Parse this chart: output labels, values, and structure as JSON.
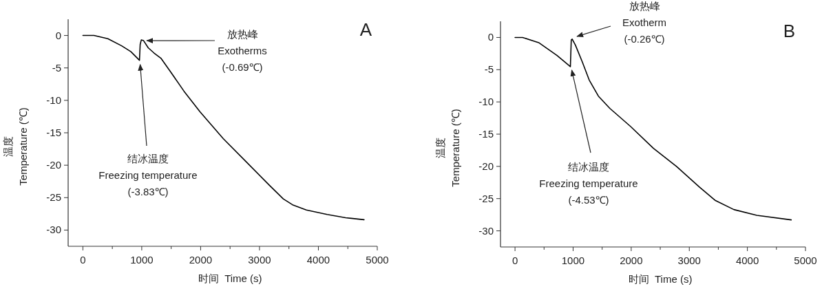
{
  "chart_data": [
    {
      "type": "line",
      "title": "A",
      "xlabel": "时间  Time (s)",
      "ylabel": "温度\nTemperature (℃)",
      "x": [
        0,
        188,
        424,
        659,
        816,
        961,
        973,
        992,
        1031,
        1110,
        1208,
        1325,
        1482,
        1718,
        1992,
        2384,
        2776,
        3169,
        3404,
        3561,
        3796,
        4149,
        4463,
        4776
      ],
      "series": [
        {
          "color": "#000000",
          "values": [
            0,
            0,
            -0.5,
            -1.6,
            -2.5,
            -3.83,
            -1.4,
            -0.69,
            -0.8,
            -1.9,
            -2.7,
            -3.5,
            -5.5,
            -8.6,
            -11.8,
            -15.9,
            -19.5,
            -23.1,
            -25.2,
            -26.1,
            -26.9,
            -27.6,
            -28.1,
            -28.4
          ]
        }
      ],
      "xlim": [
        -250,
        5000
      ],
      "ylim": [
        -32.5,
        2.5
      ],
      "xticks": [
        0,
        {
          "value": 500,
          "label": null
        },
        1000,
        {
          "value": 1500,
          "label": null
        },
        2000,
        {
          "value": 2500,
          "label": null
        },
        3000,
        {
          "value": 3500,
          "label": null
        },
        4000,
        {
          "value": 4500,
          "label": null
        },
        5000
      ],
      "yticks": [
        0,
        -5,
        -10,
        -15,
        -20,
        -25,
        -30
      ],
      "annotations": [
        {
          "text": "放热峰\nExotherms\n(-0.69℃)",
          "x": 992,
          "y": -0.69
        },
        {
          "text": "结冰温度\nFreezing temperature\n(-3.83℃)",
          "x": 961,
          "y": -3.83
        }
      ],
      "grid": false,
      "marker": "none",
      "line_style": "solid"
    },
    {
      "type": "line",
      "title": "B",
      "xlabel": "时间  Time (s)",
      "ylabel": "温度\nTemperature (℃)",
      "x": [
        0,
        130,
        407,
        723,
        953,
        968,
        984,
        1040,
        1158,
        1277,
        1435,
        1632,
        1988,
        2383,
        2779,
        3174,
        3451,
        3767,
        4162,
        4755
      ],
      "series": [
        {
          "color": "#000000",
          "values": [
            0,
            0,
            -0.8,
            -2.8,
            -4.53,
            -0.4,
            -0.26,
            -1.2,
            -3.8,
            -6.6,
            -9.1,
            -11.0,
            -13.8,
            -17.2,
            -20.0,
            -23.2,
            -25.3,
            -26.7,
            -27.6,
            -28.3
          ]
        }
      ],
      "xlim": [
        -250,
        5000
      ],
      "ylim": [
        -32.5,
        2.5
      ],
      "xticks": [
        0,
        {
          "value": 500,
          "label": null
        },
        1000,
        {
          "value": 1500,
          "label": null
        },
        2000,
        {
          "value": 2500,
          "label": null
        },
        3000,
        {
          "value": 3500,
          "label": null
        },
        4000,
        {
          "value": 4500,
          "label": null
        },
        5000
      ],
      "yticks": [
        0,
        -5,
        -10,
        -15,
        -20,
        -25,
        -30
      ],
      "annotations": [
        {
          "text": "放热峰\nExotherm\n(-0.26℃)",
          "x": 984,
          "y": -0.26
        },
        {
          "text": "结冰温度\nFreezing temperature\n(-4.53℃)",
          "x": 953,
          "y": -4.53
        }
      ],
      "grid": false,
      "marker": "none",
      "line_style": "solid"
    }
  ]
}
